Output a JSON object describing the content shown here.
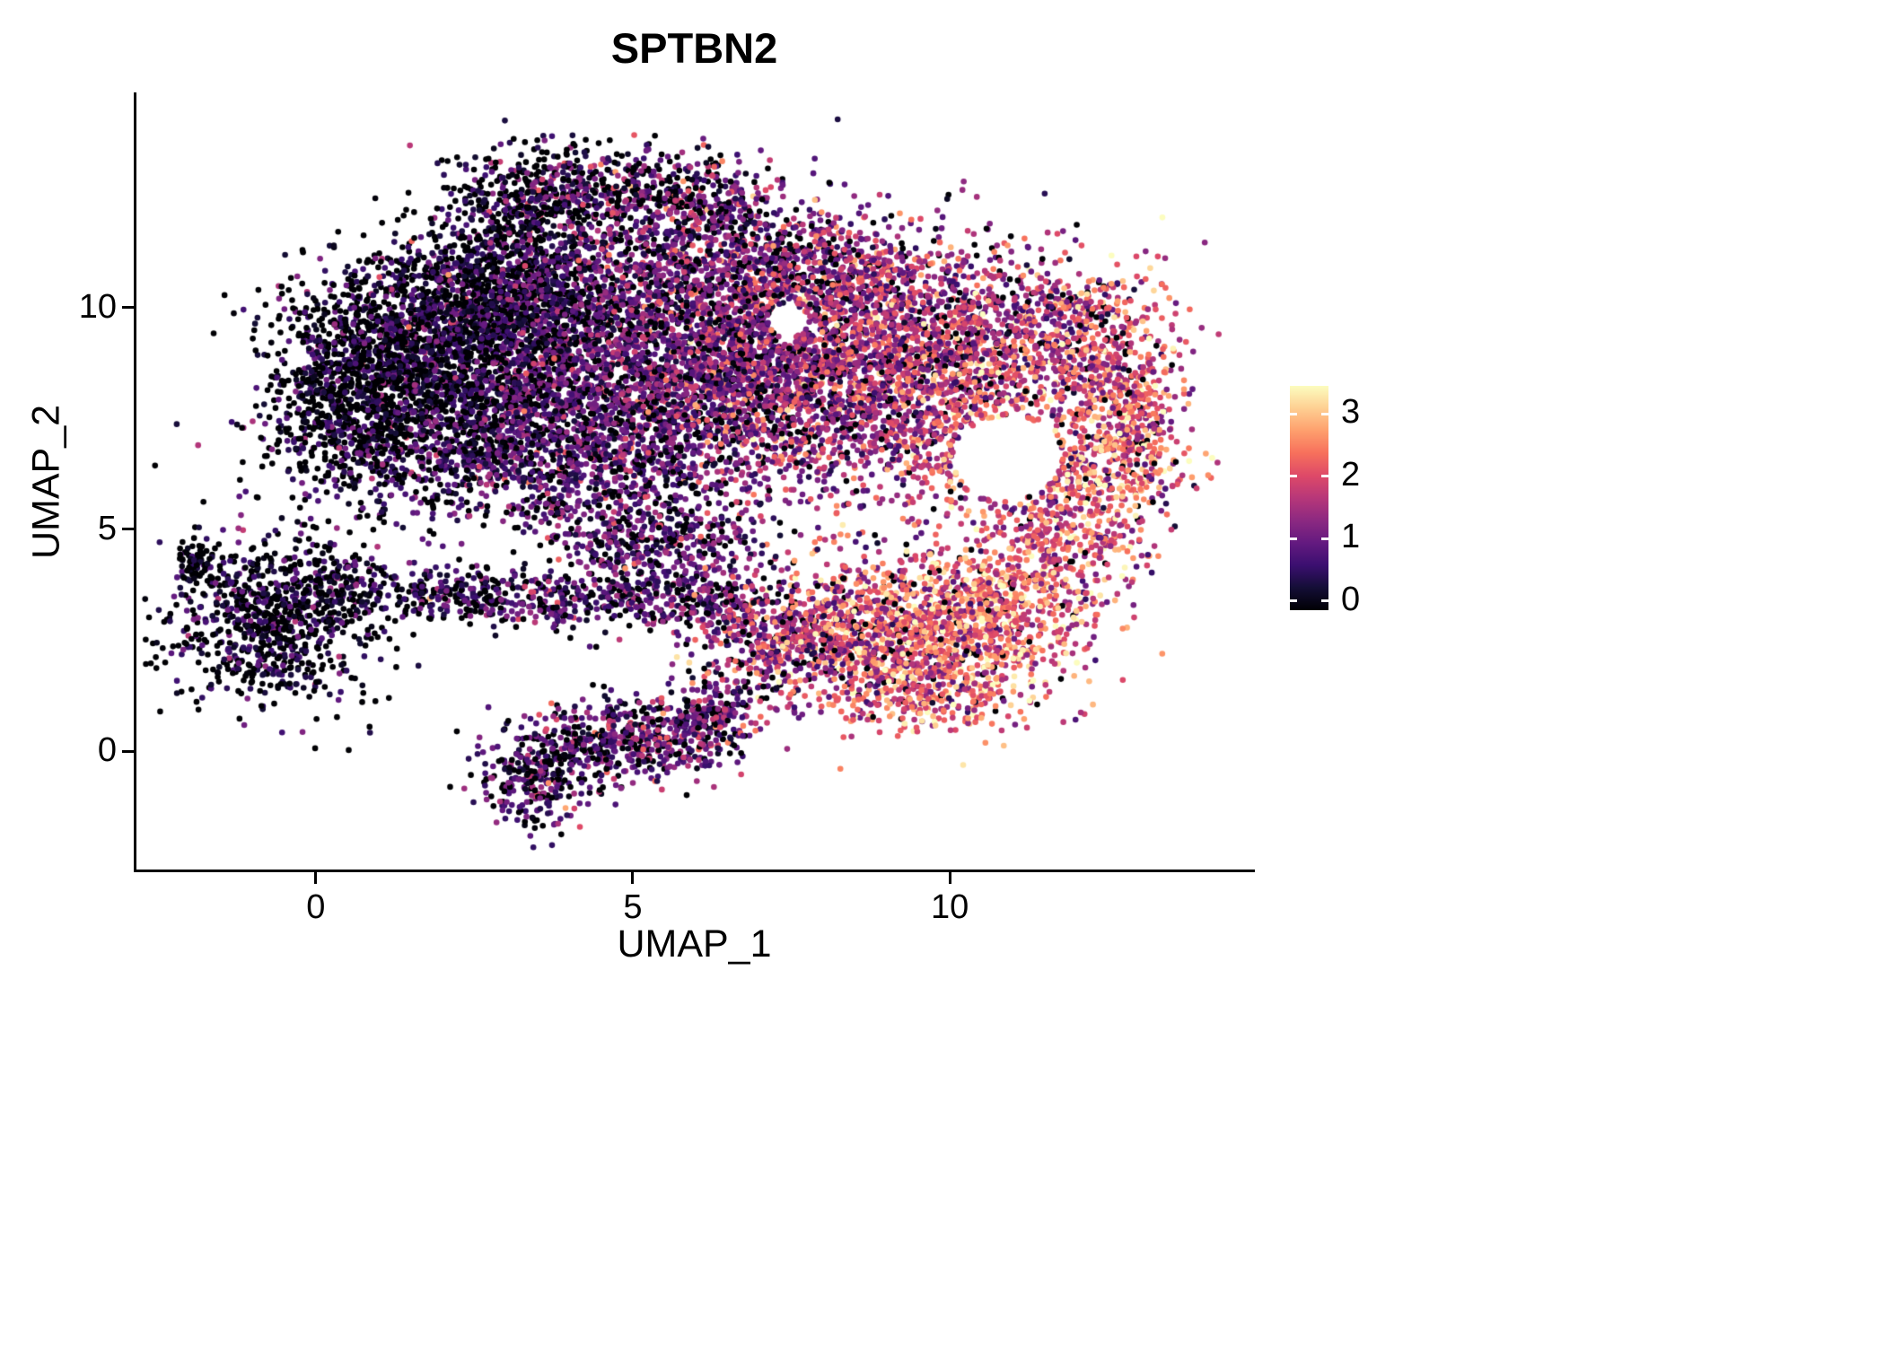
{
  "chart_data": {
    "type": "scatter",
    "title": "SPTBN2",
    "xlabel": "UMAP_1",
    "ylabel": "UMAP_2",
    "xlim": [
      -2.83,
      14.77
    ],
    "ylim": [
      -2.69,
      14.81
    ],
    "x_ticks": [
      0,
      5,
      10
    ],
    "y_ticks": [
      0,
      5,
      10
    ],
    "grid": false,
    "axis_color": "#000000",
    "background": "#ffffff",
    "point_radius_px": 3.3,
    "seed": 42,
    "colorbar": {
      "position": "right",
      "ticks": [
        0,
        1,
        2,
        3
      ],
      "domain": [
        -0.15,
        3.45
      ],
      "value_max_for_color": 3.45
    },
    "colormap": {
      "name": "magma",
      "stops": [
        {
          "t": 0.0,
          "color": "#000004"
        },
        {
          "t": 0.1,
          "color": "#140e36"
        },
        {
          "t": 0.2,
          "color": "#3b0f70"
        },
        {
          "t": 0.3,
          "color": "#641a80"
        },
        {
          "t": 0.4,
          "color": "#8c2981"
        },
        {
          "t": 0.5,
          "color": "#b73779"
        },
        {
          "t": 0.6,
          "color": "#de4968"
        },
        {
          "t": 0.7,
          "color": "#f7705c"
        },
        {
          "t": 0.8,
          "color": "#fe9f6d"
        },
        {
          "t": 0.9,
          "color": "#fecf92"
        },
        {
          "t": 1.0,
          "color": "#fcfdbf"
        }
      ]
    },
    "holes": [
      {
        "cx": 10.9,
        "cy": 6.6,
        "rx": 0.85,
        "ry": 0.95
      },
      {
        "cx": 7.45,
        "cy": 9.7,
        "rx": 0.32,
        "ry": 0.38
      }
    ],
    "clusters": [
      {
        "name": "main-left-tip",
        "cx": 0.55,
        "cy": 7.9,
        "sx": 0.8,
        "sy": 1.2,
        "n": 800,
        "expr_mean": 0.35,
        "expr_sd": 0.45,
        "zero_frac": 0.45
      },
      {
        "name": "main-upper-left",
        "cx": 1.9,
        "cy": 9.4,
        "sx": 1.0,
        "sy": 1.1,
        "n": 1300,
        "expr_mean": 0.5,
        "expr_sd": 0.5,
        "zero_frac": 0.38
      },
      {
        "name": "main-lower-left",
        "cx": 2.2,
        "cy": 7.2,
        "sx": 1.1,
        "sy": 1.0,
        "n": 850,
        "expr_mean": 0.65,
        "expr_sd": 0.5,
        "zero_frac": 0.28
      },
      {
        "name": "main-upperleft-2",
        "cx": 3.3,
        "cy": 10.2,
        "sx": 0.9,
        "sy": 0.8,
        "n": 600,
        "expr_mean": 0.6,
        "expr_sd": 0.5,
        "zero_frac": 0.3
      },
      {
        "name": "main-mid-purple",
        "cx": 4.2,
        "cy": 8.9,
        "sx": 1.2,
        "sy": 1.3,
        "n": 1200,
        "expr_mean": 0.9,
        "expr_sd": 0.55,
        "zero_frac": 0.18
      },
      {
        "name": "main-mid-lower",
        "cx": 4.6,
        "cy": 6.6,
        "sx": 1.2,
        "sy": 0.9,
        "n": 750,
        "expr_mean": 0.9,
        "expr_sd": 0.55,
        "zero_frac": 0.18
      },
      {
        "name": "main-center",
        "cx": 6.3,
        "cy": 8.6,
        "sx": 1.1,
        "sy": 1.3,
        "n": 1100,
        "expr_mean": 1.2,
        "expr_sd": 0.6,
        "zero_frac": 0.12
      },
      {
        "name": "main-top-mid",
        "cx": 6.0,
        "cy": 10.9,
        "sx": 1.4,
        "sy": 0.75,
        "n": 650,
        "expr_mean": 1.05,
        "expr_sd": 0.6,
        "zero_frac": 0.15
      },
      {
        "name": "main-right-pink",
        "cx": 8.0,
        "cy": 8.3,
        "sx": 1.1,
        "sy": 1.4,
        "n": 1200,
        "expr_mean": 1.6,
        "expr_sd": 0.65,
        "zero_frac": 0.08
      },
      {
        "name": "main-top-right",
        "cx": 8.2,
        "cy": 10.7,
        "sx": 1.2,
        "sy": 0.75,
        "n": 550,
        "expr_mean": 1.5,
        "expr_sd": 0.7,
        "zero_frac": 0.1
      },
      {
        "name": "main-far-right-1",
        "cx": 9.8,
        "cy": 9.3,
        "sx": 1.0,
        "sy": 1.0,
        "n": 800,
        "expr_mean": 1.8,
        "expr_sd": 0.7,
        "zero_frac": 0.06
      },
      {
        "name": "main-far-right-2",
        "cx": 10.1,
        "cy": 7.3,
        "sx": 0.85,
        "sy": 0.85,
        "n": 450,
        "expr_mean": 1.9,
        "expr_sd": 0.7,
        "zero_frac": 0.06
      },
      {
        "name": "main-topright-edge",
        "cx": 11.6,
        "cy": 9.5,
        "sx": 0.95,
        "sy": 0.75,
        "n": 500,
        "expr_mean": 1.7,
        "expr_sd": 0.8,
        "zero_frac": 0.08
      },
      {
        "name": "right-edge-orange",
        "cx": 12.5,
        "cy": 7.9,
        "sx": 0.6,
        "sy": 1.1,
        "n": 450,
        "expr_mean": 2.2,
        "expr_sd": 0.7,
        "zero_frac": 0.05
      },
      {
        "name": "right-lower-arc",
        "cx": 11.6,
        "cy": 5.9,
        "sx": 0.85,
        "sy": 0.55,
        "n": 280,
        "expr_mean": 2.1,
        "expr_sd": 0.8,
        "zero_frac": 0.06
      },
      {
        "name": "right-tip",
        "cx": 12.9,
        "cy": 6.9,
        "sx": 0.35,
        "sy": 0.7,
        "n": 180,
        "expr_mean": 2.3,
        "expr_sd": 0.7,
        "zero_frac": 0.05
      },
      {
        "name": "main-sparse-fill",
        "cx": 6.5,
        "cy": 8.6,
        "sx": 3.0,
        "sy": 1.7,
        "n": 600,
        "expr_mean": 1.2,
        "expr_sd": 0.7,
        "zero_frac": 0.15
      },
      {
        "name": "top-appendage",
        "cx": 4.6,
        "cy": 12.7,
        "sx": 1.1,
        "sy": 0.5,
        "n": 500,
        "expr_mean": 0.9,
        "expr_sd": 0.7,
        "zero_frac": 0.28
      },
      {
        "name": "top-appendage-dark",
        "cx": 3.2,
        "cy": 11.9,
        "sx": 0.55,
        "sy": 0.75,
        "n": 320,
        "expr_mean": 0.45,
        "expr_sd": 0.45,
        "zero_frac": 0.4
      },
      {
        "name": "top-appendage-right",
        "cx": 6.3,
        "cy": 12.2,
        "sx": 0.65,
        "sy": 0.45,
        "n": 220,
        "expr_mean": 1.2,
        "expr_sd": 0.7,
        "zero_frac": 0.15
      },
      {
        "name": "left-island",
        "cx": -0.75,
        "cy": 2.9,
        "sx": 0.8,
        "sy": 0.9,
        "n": 750,
        "expr_mean": 0.45,
        "expr_sd": 0.45,
        "zero_frac": 0.42
      },
      {
        "name": "left-island-tail",
        "cx": -1.95,
        "cy": 4.35,
        "sx": 0.14,
        "sy": 0.4,
        "n": 60,
        "expr_mean": 0.4,
        "expr_sd": 0.4,
        "zero_frac": 0.4
      },
      {
        "name": "left-island-edge",
        "cx": 0.35,
        "cy": 3.7,
        "sx": 0.45,
        "sy": 0.4,
        "n": 150,
        "expr_mean": 0.6,
        "expr_sd": 0.5,
        "zero_frac": 0.3
      },
      {
        "name": "strip-1",
        "cx": 1.9,
        "cy": 3.5,
        "sx": 0.8,
        "sy": 0.3,
        "n": 200,
        "expr_mean": 0.6,
        "expr_sd": 0.5,
        "zero_frac": 0.3
      },
      {
        "name": "strip-2",
        "cx": 3.6,
        "cy": 3.4,
        "sx": 0.8,
        "sy": 0.35,
        "n": 220,
        "expr_mean": 0.8,
        "expr_sd": 0.55,
        "zero_frac": 0.22
      },
      {
        "name": "strip-3",
        "cx": 5.3,
        "cy": 3.6,
        "sx": 0.7,
        "sy": 0.45,
        "n": 280,
        "expr_mean": 0.9,
        "expr_sd": 0.6,
        "zero_frac": 0.2
      },
      {
        "name": "strip-upper",
        "cx": 5.3,
        "cy": 4.8,
        "sx": 0.95,
        "sy": 0.45,
        "n": 300,
        "expr_mean": 0.9,
        "expr_sd": 0.6,
        "zero_frac": 0.2
      },
      {
        "name": "strip-right",
        "cx": 6.6,
        "cy": 3.2,
        "sx": 0.5,
        "sy": 0.4,
        "n": 160,
        "expr_mean": 1.2,
        "expr_sd": 0.6,
        "zero_frac": 0.15
      },
      {
        "name": "bottom-cluster-1",
        "cx": 3.4,
        "cy": -0.55,
        "sx": 0.4,
        "sy": 0.55,
        "n": 280,
        "expr_mean": 0.8,
        "expr_sd": 0.6,
        "zero_frac": 0.25
      },
      {
        "name": "bottom-cluster-2",
        "cx": 4.6,
        "cy": 0.2,
        "sx": 0.5,
        "sy": 0.5,
        "n": 300,
        "expr_mean": 0.9,
        "expr_sd": 0.6,
        "zero_frac": 0.22
      },
      {
        "name": "bottom-cluster-3",
        "cx": 5.7,
        "cy": 0.35,
        "sx": 0.5,
        "sy": 0.45,
        "n": 240,
        "expr_mean": 1.0,
        "expr_sd": 0.6,
        "zero_frac": 0.2
      },
      {
        "name": "bottom-cluster-4",
        "cx": 6.35,
        "cy": 0.8,
        "sx": 0.3,
        "sy": 0.35,
        "n": 130,
        "expr_mean": 1.1,
        "expr_sd": 0.6,
        "zero_frac": 0.15
      },
      {
        "name": "botright-left",
        "cx": 7.3,
        "cy": 2.2,
        "sx": 0.6,
        "sy": 0.6,
        "n": 260,
        "expr_mean": 1.4,
        "expr_sd": 0.7,
        "zero_frac": 0.1
      },
      {
        "name": "botright-mid",
        "cx": 8.4,
        "cy": 2.7,
        "sx": 0.9,
        "sy": 0.8,
        "n": 600,
        "expr_mean": 1.8,
        "expr_sd": 0.8,
        "zero_frac": 0.08
      },
      {
        "name": "botright-hot",
        "cx": 9.8,
        "cy": 2.7,
        "sx": 1.0,
        "sy": 0.85,
        "n": 800,
        "expr_mean": 2.4,
        "expr_sd": 0.7,
        "zero_frac": 0.05
      },
      {
        "name": "botright-east",
        "cx": 11.0,
        "cy": 3.4,
        "sx": 0.8,
        "sy": 0.75,
        "n": 420,
        "expr_mean": 2.2,
        "expr_sd": 0.75,
        "zero_frac": 0.05
      },
      {
        "name": "botright-lower",
        "cx": 9.6,
        "cy": 1.3,
        "sx": 0.9,
        "sy": 0.4,
        "n": 240,
        "expr_mean": 2.1,
        "expr_sd": 0.7,
        "zero_frac": 0.06
      },
      {
        "name": "botright-bridge",
        "cx": 11.9,
        "cy": 4.8,
        "sx": 0.65,
        "sy": 0.6,
        "n": 240,
        "expr_mean": 2.1,
        "expr_sd": 0.75,
        "zero_frac": 0.06
      }
    ]
  }
}
